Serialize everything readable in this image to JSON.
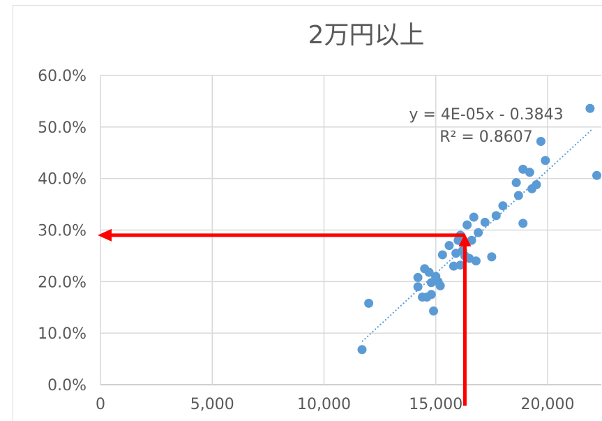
{
  "chart_data": {
    "type": "scatter",
    "title": "2万円以上",
    "xlabel": "",
    "ylabel": "",
    "xlim": [
      0,
      22000
    ],
    "ylim": [
      0,
      0.6
    ],
    "x_ticks": [
      0,
      5000,
      10000,
      15000,
      20000
    ],
    "x_tick_labels": [
      "0",
      "5,000",
      "10,000",
      "15,000",
      "20,000"
    ],
    "y_ticks": [
      0,
      0.1,
      0.2,
      0.3,
      0.4,
      0.5,
      0.6
    ],
    "y_tick_labels": [
      "0.0%",
      "10.0%",
      "20.0%",
      "30.0%",
      "40.0%",
      "50.0%",
      "60.0%"
    ],
    "grid": true,
    "marker_color": "#5b9bd5",
    "trendline": {
      "type": "linear",
      "color": "#5b9bd5",
      "style": "dotted",
      "slope": 4e-05,
      "intercept": -0.3843,
      "x_range": [
        11700,
        22000
      ],
      "equation_label": "y = 4E-05x - 0.3843",
      "r2_label": "R² = 0.8607"
    },
    "annotation_arrows": {
      "color": "#ff0000",
      "x_value": 16300,
      "y_value": 0.29
    },
    "points": [
      {
        "x": 11700,
        "y": 0.068
      },
      {
        "x": 12000,
        "y": 0.158
      },
      {
        "x": 14200,
        "y": 0.208
      },
      {
        "x": 14200,
        "y": 0.19
      },
      {
        "x": 14500,
        "y": 0.225
      },
      {
        "x": 14400,
        "y": 0.17
      },
      {
        "x": 14600,
        "y": 0.17
      },
      {
        "x": 14700,
        "y": 0.218
      },
      {
        "x": 14800,
        "y": 0.175
      },
      {
        "x": 14800,
        "y": 0.198
      },
      {
        "x": 14900,
        "y": 0.143
      },
      {
        "x": 15000,
        "y": 0.21
      },
      {
        "x": 15100,
        "y": 0.2
      },
      {
        "x": 15200,
        "y": 0.192
      },
      {
        "x": 15300,
        "y": 0.252
      },
      {
        "x": 15600,
        "y": 0.27
      },
      {
        "x": 15800,
        "y": 0.23
      },
      {
        "x": 15900,
        "y": 0.255
      },
      {
        "x": 16000,
        "y": 0.28
      },
      {
        "x": 16100,
        "y": 0.29
      },
      {
        "x": 16100,
        "y": 0.232
      },
      {
        "x": 16200,
        "y": 0.26
      },
      {
        "x": 16300,
        "y": 0.25
      },
      {
        "x": 16400,
        "y": 0.31
      },
      {
        "x": 16500,
        "y": 0.245
      },
      {
        "x": 16600,
        "y": 0.28
      },
      {
        "x": 16700,
        "y": 0.325
      },
      {
        "x": 16800,
        "y": 0.24
      },
      {
        "x": 16900,
        "y": 0.295
      },
      {
        "x": 17200,
        "y": 0.315
      },
      {
        "x": 17500,
        "y": 0.248
      },
      {
        "x": 17700,
        "y": 0.328
      },
      {
        "x": 18000,
        "y": 0.347
      },
      {
        "x": 18600,
        "y": 0.392
      },
      {
        "x": 18700,
        "y": 0.367
      },
      {
        "x": 18900,
        "y": 0.418
      },
      {
        "x": 18900,
        "y": 0.313
      },
      {
        "x": 19200,
        "y": 0.412
      },
      {
        "x": 19300,
        "y": 0.38
      },
      {
        "x": 19500,
        "y": 0.388
      },
      {
        "x": 19700,
        "y": 0.472
      },
      {
        "x": 19900,
        "y": 0.435
      },
      {
        "x": 21900,
        "y": 0.536
      },
      {
        "x": 22200,
        "y": 0.406
      }
    ]
  }
}
